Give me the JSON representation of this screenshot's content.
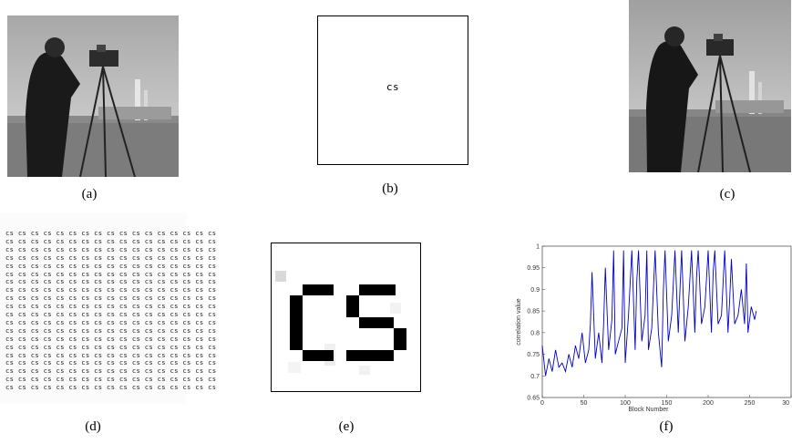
{
  "captions": {
    "a": "(a)",
    "b": "(b)",
    "c": "(c)",
    "d": "(d)",
    "e": "(e)",
    "f": "(f)"
  },
  "watermark_text": "cs",
  "tiled_row_text": "cs cs cs cs cs cs cs cs cs cs cs cs cs cs cs cs cs",
  "tiled_row_count": 20,
  "chart_data": {
    "type": "line",
    "title": "",
    "xlabel": "Block Number",
    "ylabel": "correlation value",
    "xlim": [
      0,
      300
    ],
    "ylim": [
      0.65,
      1
    ],
    "xticks": [
      "0",
      "50",
      "100",
      "150",
      "200",
      "250",
      "30"
    ],
    "yticks": [
      "0.65",
      "0.7",
      "0.75",
      "0.8",
      "0.85",
      "0.9",
      "0.95",
      "1"
    ],
    "grid": false,
    "series": [
      {
        "color": "#0000cc",
        "x": [
          0,
          4,
          8,
          12,
          16,
          20,
          24,
          28,
          32,
          36,
          40,
          44,
          48,
          52,
          56,
          58,
          60,
          64,
          68,
          72,
          74,
          76,
          80,
          84,
          86,
          88,
          92,
          96,
          98,
          100,
          104,
          108,
          112,
          114,
          116,
          120,
          124,
          126,
          128,
          132,
          136,
          140,
          144,
          146,
          148,
          152,
          156,
          160,
          164,
          166,
          168,
          172,
          176,
          180,
          184,
          186,
          188,
          192,
          196,
          200,
          204,
          206,
          208,
          212,
          216,
          220,
          224,
          226,
          228,
          232,
          236,
          240,
          244,
          246,
          248,
          252,
          256,
          258
        ],
        "values": [
          0.77,
          0.7,
          0.74,
          0.71,
          0.76,
          0.72,
          0.73,
          0.71,
          0.75,
          0.72,
          0.77,
          0.74,
          0.8,
          0.73,
          0.76,
          0.82,
          0.94,
          0.74,
          0.8,
          0.73,
          0.82,
          0.95,
          0.76,
          0.83,
          0.99,
          0.75,
          0.78,
          0.81,
          0.99,
          0.73,
          0.84,
          0.99,
          0.76,
          0.92,
          0.99,
          0.78,
          0.84,
          0.99,
          0.76,
          0.81,
          0.99,
          0.8,
          0.72,
          0.9,
          0.99,
          0.78,
          0.84,
          0.99,
          0.8,
          0.9,
          0.99,
          0.78,
          0.86,
          0.99,
          0.8,
          0.93,
          0.99,
          0.82,
          0.86,
          0.99,
          0.8,
          0.94,
          0.99,
          0.82,
          0.84,
          0.99,
          0.8,
          0.88,
          0.97,
          0.82,
          0.84,
          0.9,
          0.82,
          0.96,
          0.8,
          0.86,
          0.83,
          0.85
        ]
      }
    ]
  }
}
